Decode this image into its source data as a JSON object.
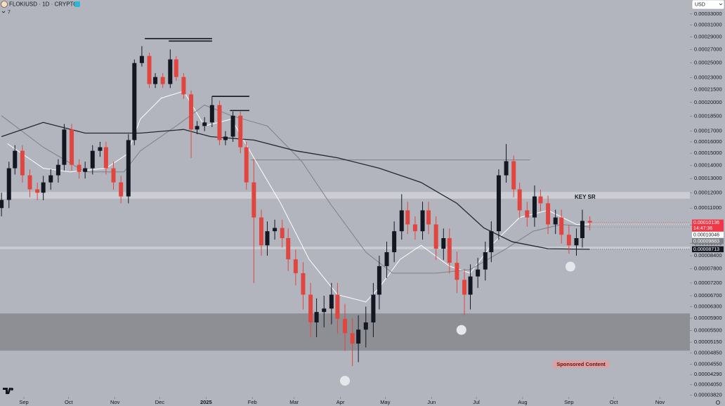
{
  "header": {
    "symbol": "FLOKIUSD · 1D · CRYPTO",
    "indicators": "7",
    "currency": "USD"
  },
  "chart_data": {
    "type": "candlestick",
    "log_scale": true,
    "grid": false,
    "up_color": "#131722",
    "down_color": "#e0463f",
    "x": [
      -15,
      -10,
      -6,
      -1,
      4,
      9,
      13,
      18,
      23,
      27,
      32,
      37,
      41,
      46,
      51,
      55,
      60,
      65,
      70,
      74,
      79,
      84,
      88,
      93,
      98,
      102,
      107,
      112,
      116,
      121,
      126,
      131,
      135,
      140,
      145,
      149,
      154,
      159,
      163,
      168,
      173,
      177,
      182,
      187,
      192,
      196,
      201,
      206,
      210,
      215,
      220,
      224,
      229,
      234,
      238,
      243,
      248,
      253,
      257,
      262,
      267,
      271,
      276,
      281,
      285,
      290,
      295,
      299,
      304,
      309,
      313,
      318,
      323,
      328,
      332,
      337,
      342,
      346,
      351,
      356,
      360,
      365,
      370,
      374,
      379
    ],
    "open": [
      0.00011,
      0.0001152,
      0.0001378,
      0.0001521,
      0.0001324,
      0.0001223,
      0.00012,
      0.0001272,
      0.0001324,
      0.0001405,
      0.0001716,
      0.0001405,
      0.000135,
      0.0001378,
      0.0001521,
      0.0001552,
      0.0001378,
      0.0001272,
      0.0001175,
      0.0001616,
      0.0002499,
      0.0002601,
      0.0002219,
      0.0002309,
      0.0002219,
      0.0002551,
      0.0002309,
      0.0002093,
      0.0001716,
      0.000175,
      0.0001786,
      0.000197,
      0.0001616,
      0.0001648,
      0.0001855,
      0.0001552,
      0.0001272,
      0.0001043,
      8.91e-05,
      9.65e-05,
      9.83e-05,
      9.28e-05,
      8.23e-05,
      7.61e-05,
      6.74e-05,
      5.76e-05,
      6.11e-05,
      6.23e-05,
      6.74e-05,
      5.88e-05,
      5.42e-05,
      5.11e-05,
      5.53e-05,
      5.76e-05,
      6.74e-05,
      7.92e-05,
      8.57e-05,
      9.65e-05,
      0.0001086,
      0.0001003,
      9.65e-05,
      0.0001086,
      0.0001003,
      8.74e-05,
      9.28e-05,
      8.07e-05,
      7.33e-05,
      6.74e-05,
      7.47e-05,
      7.77e-05,
      8.57e-05,
      9.65e-05,
      0.0001324,
      0.0001434,
      0.0001223,
      0.0001086,
      0.0001043,
      0.0001175,
      0.000113,
      0.0001003,
      0.0001043,
      9.46e-05,
      8.91e-05,
      9.28e-05,
      0.0001023
    ],
    "high": [
      0.00012,
      0.000143,
      0.000157,
      0.000157,
      0.000137,
      0.000127,
      0.000132,
      0.000137,
      0.000145,
      0.000177,
      0.000177,
      0.000145,
      0.000143,
      0.000157,
      0.00016,
      0.00016,
      0.000143,
      0.000132,
      0.000167,
      0.000255,
      0.000275,
      0.000265,
      0.000236,
      0.000236,
      0.00027,
      0.00026,
      0.000236,
      0.000214,
      0.00018,
      0.000184,
      0.000207,
      0.000202,
      0.00017,
      0.00019,
      0.00019,
      0.00016,
      0.000145,
      0.000109,
      0.000102,
      0.000103,
      0.000103,
      9.8e-05,
      8.7e-05,
      8.1e-05,
      7.2e-05,
      6.6e-05,
      6.7e-05,
      7.2e-05,
      7.2e-05,
      6.4e-05,
      5.9e-05,
      6e-05,
      6.3e-05,
      7.2e-05,
      8.4e-05,
      9.1e-05,
      0.000102,
      0.000119,
      0.000114,
      0.000105,
      0.000114,
      0.000114,
      0.000105,
      9.8e-05,
      9.8e-05,
      8.6e-05,
      7.8e-05,
      8e-05,
      8.3e-05,
      9.1e-05,
      0.000102,
      0.000137,
      0.000158,
      0.000148,
      0.000127,
      0.000114,
      0.000125,
      0.000122,
      0.000118,
      0.000109,
      0.000109,
      0.0001,
      9.8e-05,
      0.000109,
      0.000105
    ],
    "low": [
      0.000105,
      0.00011,
      0.000133,
      0.000127,
      0.000117,
      0.000115,
      0.000115,
      0.000122,
      0.000127,
      0.000136,
      0.000136,
      0.00013,
      0.00013,
      0.000133,
      0.000147,
      0.000133,
      0.000122,
      0.000113,
      0.000113,
      0.000157,
      0.000245,
      0.000217,
      0.000217,
      0.000217,
      0.000217,
      0.000226,
      0.000204,
      0.000146,
      0.000167,
      0.00017,
      0.000174,
      0.000157,
      0.000157,
      0.00016,
      0.00015,
      0.000122,
      7.2e-05,
      8.4e-05,
      8.4e-05,
      9.2e-05,
      8.8e-05,
      7.7e-05,
      7.1e-05,
      6.2e-05,
      5.3e-05,
      5.3e-05,
      5.6e-05,
      5.7e-05,
      5.4e-05,
      4.9e-05,
      4.5e-05,
      4.6e-05,
      5e-05,
      5.3e-05,
      6.2e-05,
      7.4e-05,
      8.1e-05,
      9.2e-05,
      9.5e-05,
      9.2e-05,
      9.2e-05,
      9.5e-05,
      8.2e-05,
      8.2e-05,
      7.6e-05,
      6.8e-05,
      6e-05,
      6.2e-05,
      7e-05,
      7.3e-05,
      8.1e-05,
      9.2e-05,
      0.000127,
      0.000117,
      0.000104,
      9.9e-05,
      9.9e-05,
      0.000108,
      9.5e-05,
      9.5e-05,
      9e-05,
      8.5e-05,
      8.4e-05,
      8.8e-05,
      9.7e-05
    ],
    "close": [
      0.0001152,
      0.0001378,
      0.0001521,
      0.0001324,
      0.0001223,
      0.00012,
      0.0001272,
      0.0001324,
      0.0001405,
      0.0001716,
      0.0001405,
      0.000135,
      0.0001378,
      0.0001521,
      0.0001552,
      0.0001378,
      0.0001272,
      0.0001175,
      0.0001616,
      0.0002499,
      0.0002601,
      0.0002219,
      0.0002309,
      0.0002219,
      0.0002551,
      0.0002309,
      0.0002093,
      0.0001716,
      0.000175,
      0.0001786,
      0.000197,
      0.0001616,
      0.0001648,
      0.0001855,
      0.0001552,
      0.0001272,
      0.0001043,
      8.91e-05,
      9.65e-05,
      9.83e-05,
      9.28e-05,
      8.23e-05,
      7.61e-05,
      6.74e-05,
      5.76e-05,
      6.11e-05,
      6.23e-05,
      6.74e-05,
      5.88e-05,
      5.42e-05,
      5.11e-05,
      5.53e-05,
      5.76e-05,
      6.74e-05,
      7.92e-05,
      8.57e-05,
      9.65e-05,
      0.0001086,
      0.0001003,
      9.65e-05,
      0.0001086,
      0.0001003,
      8.74e-05,
      9.28e-05,
      8.07e-05,
      7.33e-05,
      6.74e-05,
      7.47e-05,
      7.77e-05,
      8.57e-05,
      9.65e-05,
      0.0001324,
      0.0001434,
      0.0001223,
      0.0001086,
      0.0001043,
      0.0001175,
      0.000113,
      0.0001003,
      0.0001043,
      9.46e-05,
      8.91e-05,
      9.28e-05,
      0.0001023,
      0.00010136
    ],
    "lines": [
      {
        "color": "#ffffff",
        "x": [
          -11,
          13,
          31,
          55,
          69,
          78,
          92,
          107,
          121,
          139,
          154,
          172,
          191,
          210,
          229,
          238,
          252,
          266,
          285,
          299,
          313,
          332,
          351,
          370,
          379
        ],
        "values": [
          0.0001584,
          0.0001378,
          0.000135,
          0.0001378,
          0.0001491,
          0.000182,
          0.000205,
          0.000213,
          0.000175,
          0.000182,
          0.0001462,
          0.000113,
          8.23e-05,
          6.74e-05,
          6.47e-05,
          7.02e-05,
          8.23e-05,
          8.91e-05,
          7.92e-05,
          7.61e-05,
          8.91e-05,
          0.0001043,
          0.0001086,
          0.0001003,
          0.00010046
        ]
      },
      {
        "color": "#7d8087",
        "x": [
          -15,
          13,
          41,
          67,
          78,
          102,
          121,
          139,
          163,
          186,
          205,
          229,
          247,
          276,
          299,
          323,
          341,
          360,
          379
        ],
        "values": [
          0.0001855,
          0.0001552,
          0.000135,
          0.000135,
          0.0001521,
          0.000175,
          0.000197,
          0.0001855,
          0.000175,
          0.0001434,
          0.000113,
          8.57e-05,
          7.61e-05,
          7.61e-05,
          7.77e-05,
          8.74e-05,
          9.65e-05,
          0.0001003,
          9.883e-05
        ]
      },
      {
        "color": "#23262e",
        "x": [
          -15,
          13,
          41,
          78,
          107,
          125,
          154,
          182,
          210,
          238,
          266,
          290,
          308,
          327,
          351,
          379
        ],
        "values": [
          0.0001648,
          0.0001786,
          0.0001681,
          0.0001681,
          0.0001716,
          0.0001648,
          0.0001616,
          0.0001521,
          0.0001462,
          0.0001378,
          0.0001272,
          0.000113,
          9.83e-05,
          9.09e-05,
          8.74e-05,
          8.713e-05
        ]
      }
    ],
    "zones": [
      {
        "from": 4.91e-05,
        "to": 6.06e-05,
        "color": "#8d8f95"
      },
      {
        "from": 0.000116,
        "to": 0.0001205,
        "color": "#cbcdd3"
      },
      {
        "from": 8.72e-05,
        "to": 8.84e-05,
        "color": "#cbcdd3"
      }
    ],
    "segments": [
      {
        "x": [
          152,
          339
        ],
        "y": 0.0001444,
        "color": "#6d7077"
      },
      {
        "x": [
          81,
          126
        ],
        "y": 0.000287,
        "color": "#131722"
      },
      {
        "x": [
          97,
          126
        ],
        "y": 0.000283,
        "color": "#131722"
      },
      {
        "x": [
          126,
          151
        ],
        "y": 0.000207,
        "color": "#131722"
      },
      {
        "x": [
          138,
          151
        ],
        "y": 0.000191,
        "color": "#131722"
      }
    ],
    "markers": [
      {
        "x": 215,
        "y": 4.14e-05
      },
      {
        "x": 293,
        "y": 5.52e-05
      },
      {
        "x": 366,
        "y": 7.9e-05
      }
    ],
    "annotations": [
      "KEY SR",
      "Sponsored Content"
    ],
    "price_labels": [
      {
        "value": 0.00010136,
        "label": "0.00010136",
        "color": "#f23645"
      },
      {
        "value": 0.00010046,
        "label": "0.00010046",
        "color": "#ffffff"
      },
      {
        "value": 9.883e-05,
        "label": "0.00009883",
        "color": "#7d8087"
      },
      {
        "value": 8.713e-05,
        "label": "0.00008713",
        "color": "#131722"
      }
    ],
    "countdown": "14:47:36",
    "xlim": [
      -16,
      446
    ],
    "xticks": [
      {
        "value": 0,
        "label": "Sep"
      },
      {
        "value": 30,
        "label": "Oct"
      },
      {
        "value": 61,
        "label": "Nov"
      },
      {
        "value": 91,
        "label": "Dec"
      },
      {
        "value": 122,
        "label": "2025"
      },
      {
        "value": 153,
        "label": "Feb"
      },
      {
        "value": 181,
        "label": "Mar"
      },
      {
        "value": 212,
        "label": "Apr"
      },
      {
        "value": 242,
        "label": "May"
      },
      {
        "value": 273,
        "label": "Jun"
      },
      {
        "value": 303,
        "label": "Jul"
      },
      {
        "value": 334,
        "label": "Aug"
      },
      {
        "value": 365,
        "label": "Sep"
      },
      {
        "value": 395,
        "label": "Oct"
      },
      {
        "value": 426,
        "label": "Nov"
      }
    ],
    "ylim": [
      3.78e-05,
      0.000357
    ],
    "yticks": [
      {
        "value": 0.00033,
        "label": "0.00033000"
      },
      {
        "value": 0.00031,
        "label": "0.00031000"
      },
      {
        "value": 0.00029,
        "label": "0.00029000"
      },
      {
        "value": 0.00027,
        "label": "0.00027000"
      },
      {
        "value": 0.00025,
        "label": "0.00025000"
      },
      {
        "value": 0.00023,
        "label": "0.00023000"
      },
      {
        "value": 0.000215,
        "label": "0.00021500"
      },
      {
        "value": 0.0002,
        "label": "0.00020000"
      },
      {
        "value": 0.000185,
        "label": "0.00018500"
      },
      {
        "value": 0.00017,
        "label": "0.00017000"
      },
      {
        "value": 0.00016,
        "label": "0.00016000"
      },
      {
        "value": 0.00015,
        "label": "0.00015000"
      },
      {
        "value": 0.00014,
        "label": "0.00014000"
      },
      {
        "value": 0.00013,
        "label": "0.00013000"
      },
      {
        "value": 0.00012,
        "label": "0.00012000"
      },
      {
        "value": 0.00011,
        "label": "0.00011000"
      },
      {
        "value": 0.0001,
        "label": "0.00010000"
      },
      {
        "value": 9e-05,
        "label": "0.00009000"
      },
      {
        "value": 8.4e-05,
        "label": "0.00008400"
      },
      {
        "value": 7.8e-05,
        "label": "0.00007800"
      },
      {
        "value": 7.2e-05,
        "label": "0.00007200"
      },
      {
        "value": 6.7e-05,
        "label": "0.00006700"
      },
      {
        "value": 6.3e-05,
        "label": "0.00006300"
      },
      {
        "value": 5.9e-05,
        "label": "0.00005900"
      },
      {
        "value": 5.5e-05,
        "label": "0.00005500"
      },
      {
        "value": 5.15e-05,
        "label": "0.00005150"
      },
      {
        "value": 4.85e-05,
        "label": "0.00004850"
      },
      {
        "value": 4.55e-05,
        "label": "0.00004550"
      },
      {
        "value": 4.29e-05,
        "label": "0.00004290"
      },
      {
        "value": 4.05e-05,
        "label": "0.00004050"
      },
      {
        "value": 3.82e-05,
        "label": "0.00003820"
      }
    ]
  }
}
